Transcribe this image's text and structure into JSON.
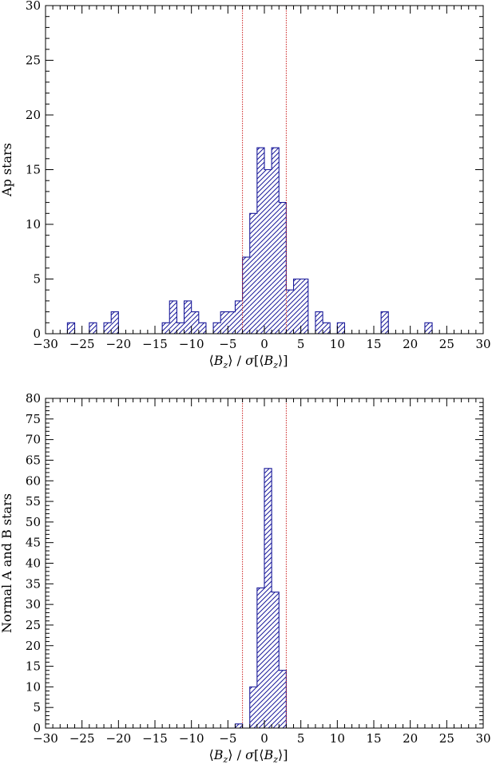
{
  "chart_data": [
    {
      "type": "bar",
      "histogram": true,
      "bin_width": 1,
      "bin_lefts": [
        -28,
        -27,
        -26,
        -25,
        -24,
        -23,
        -22,
        -21,
        -20,
        -19,
        -18,
        -17,
        -16,
        -15,
        -14,
        -13,
        -12,
        -11,
        -10,
        -9,
        -8,
        -7,
        -6,
        -5,
        -4,
        -3,
        -2,
        -1,
        0,
        1,
        2,
        3,
        4,
        5,
        6,
        7,
        8,
        9,
        10,
        11,
        12,
        13,
        14,
        15,
        16,
        17,
        18,
        19,
        20,
        21,
        22,
        23
      ],
      "values": [
        0,
        1,
        0,
        0,
        1,
        0,
        1,
        2,
        0,
        0,
        0,
        0,
        0,
        0,
        1,
        3,
        1,
        3,
        2,
        1,
        0,
        1,
        2,
        2,
        3,
        7,
        11,
        17,
        15,
        17,
        12,
        4,
        5,
        5,
        0,
        2,
        1,
        0,
        1,
        0,
        0,
        0,
        0,
        0,
        2,
        0,
        0,
        0,
        0,
        0,
        1,
        0
      ],
      "ylabel": "Ap stars",
      "xlabel": "⟨Bz⟩ / σ[⟨Bz⟩]",
      "xlim": [
        -30,
        30
      ],
      "ylim": [
        0,
        30
      ],
      "xticks": [
        -30,
        -25,
        -20,
        -15,
        -10,
        -5,
        0,
        5,
        10,
        15,
        20,
        25,
        30
      ],
      "yticks": [
        0,
        5,
        10,
        15,
        20,
        25,
        30
      ],
      "threshold_lines": [
        -3,
        3
      ],
      "fill_pattern": "diagonal-hatch",
      "hatch_color": "#1a1a9a",
      "threshold_color": "#cc2222",
      "grid": false
    },
    {
      "type": "bar",
      "histogram": true,
      "bin_width": 1,
      "bin_lefts": [
        -4,
        -3,
        -2,
        -1,
        0,
        1,
        2
      ],
      "values": [
        1,
        0,
        10,
        34,
        63,
        33,
        14
      ],
      "ylabel": "Normal A and B stars",
      "xlabel": "⟨Bz⟩ / σ[⟨Bz⟩]",
      "xlim": [
        -30,
        30
      ],
      "ylim": [
        0,
        80
      ],
      "xticks": [
        -30,
        -25,
        -20,
        -15,
        -10,
        -5,
        0,
        5,
        10,
        15,
        20,
        25,
        30
      ],
      "yticks": [
        0,
        5,
        10,
        15,
        20,
        25,
        30,
        35,
        40,
        45,
        50,
        55,
        60,
        65,
        70,
        75,
        80
      ],
      "threshold_lines": [
        -3,
        3
      ],
      "fill_pattern": "diagonal-hatch",
      "hatch_color": "#1a1a9a",
      "threshold_color": "#cc2222",
      "grid": false
    }
  ]
}
